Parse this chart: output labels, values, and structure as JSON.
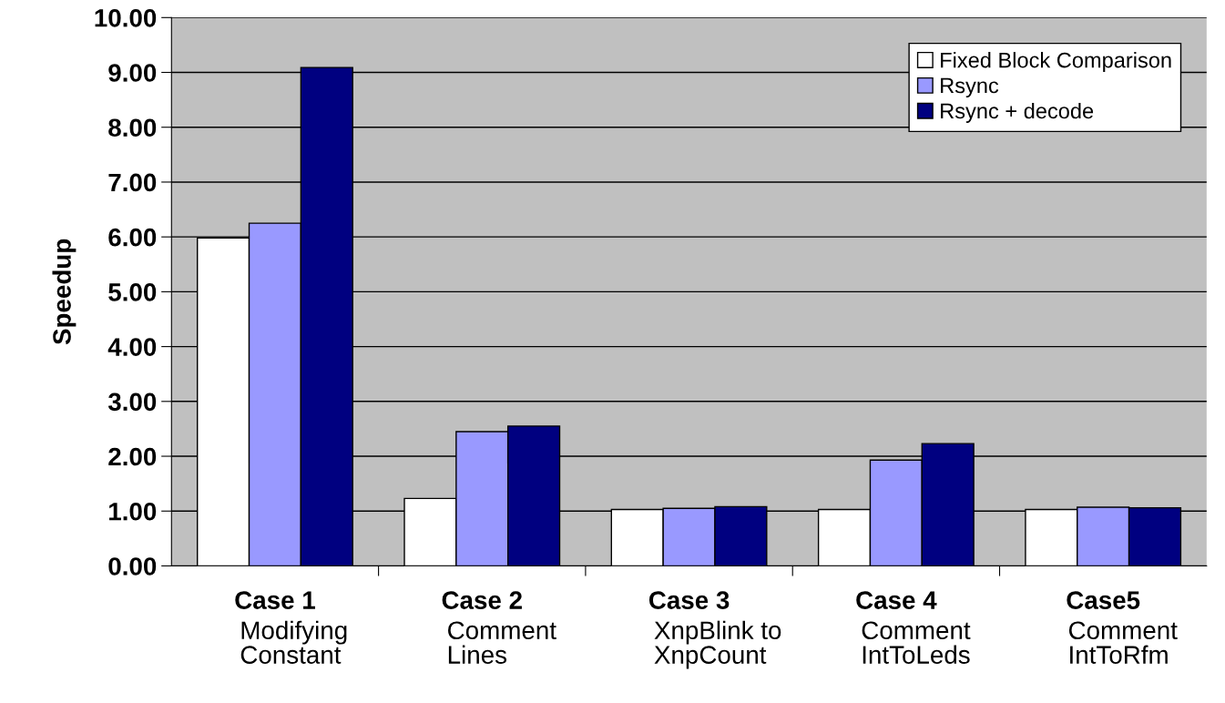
{
  "chart_data": {
    "type": "bar",
    "ylabel": "Speedup",
    "categories": [
      "Case 1\nModifying\nConstant",
      "Case 2\nComment\nLines",
      "Case 3\nXnpBlink to\nXnpCount",
      "Case 4\nComment\nIntToLeds",
      "Case5\nComment\nIntToRfm"
    ],
    "series": [
      {
        "name": "Fixed Block Comparison",
        "color": "#ffffff",
        "values": [
          5.98,
          1.23,
          1.03,
          1.03,
          1.03
        ]
      },
      {
        "name": "Rsync",
        "color": "#9999ff",
        "values": [
          6.25,
          2.45,
          1.05,
          1.93,
          1.07
        ]
      },
      {
        "name": "Rsync + decode",
        "color": "#000080",
        "values": [
          9.09,
          2.55,
          1.08,
          2.23,
          1.06
        ]
      }
    ],
    "ylim": [
      0,
      10
    ],
    "yticks": [
      {
        "value": 0,
        "label": "0.00"
      },
      {
        "value": 1,
        "label": "1.00"
      },
      {
        "value": 2,
        "label": "2.00"
      },
      {
        "value": 3,
        "label": "3.00"
      },
      {
        "value": 4,
        "label": "4.00"
      },
      {
        "value": 5,
        "label": "5.00"
      },
      {
        "value": 6,
        "label": "6.00"
      },
      {
        "value": 7,
        "label": "7.00"
      },
      {
        "value": 8,
        "label": "8.00"
      },
      {
        "value": 9,
        "label": "9.00"
      },
      {
        "value": 10,
        "label": "10.00"
      }
    ],
    "grid": "y",
    "legend": "top right"
  }
}
